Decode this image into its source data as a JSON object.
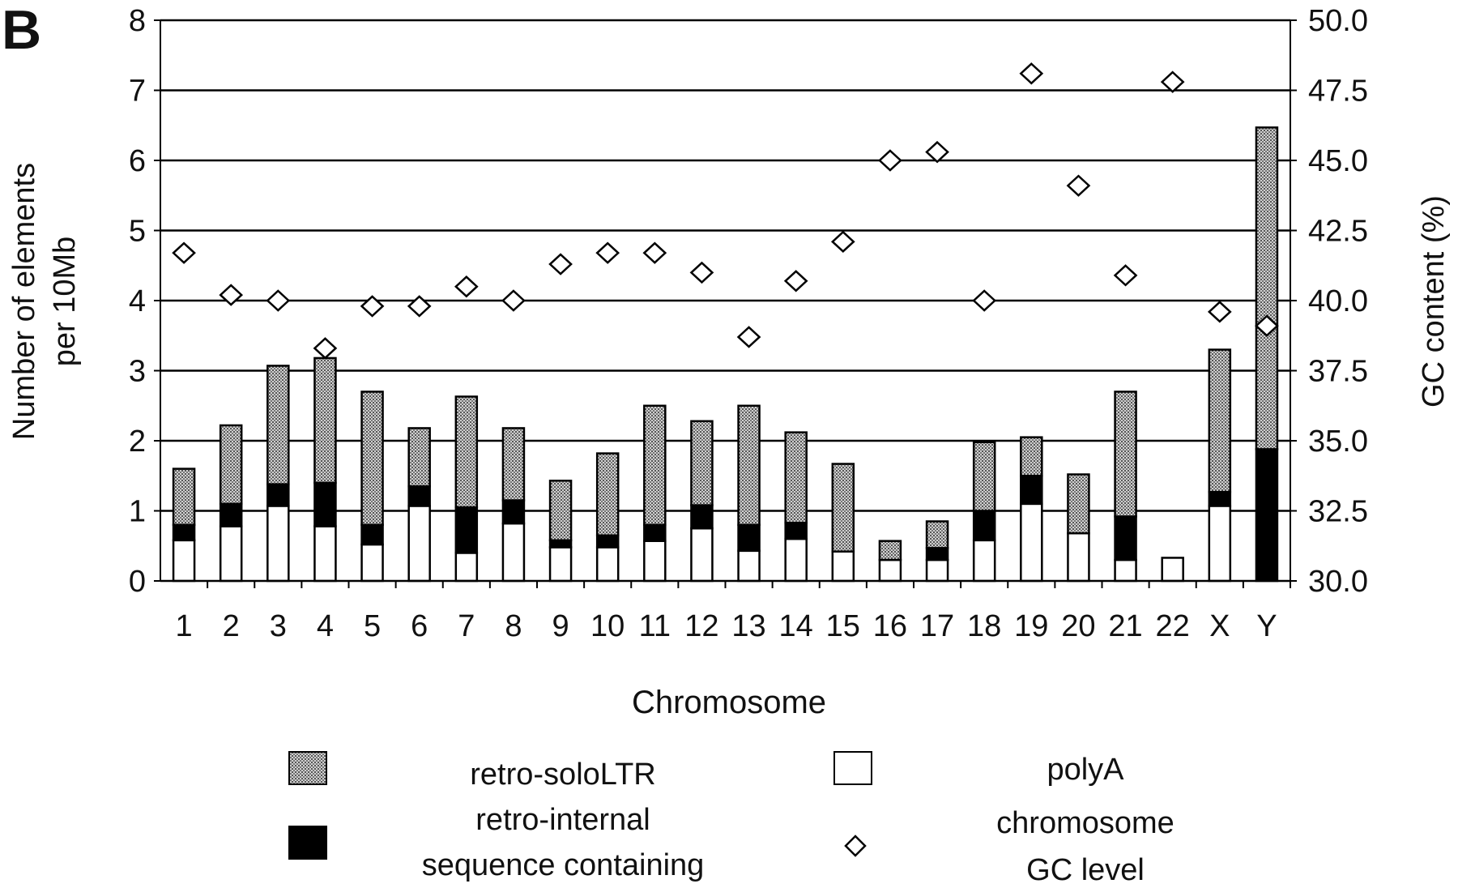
{
  "panel_label": "B",
  "chart_data": {
    "type": "bar",
    "stacked": true,
    "xlabel": "Chromosome",
    "ylabel": "Number of elements per 10Mb",
    "ylabel_lines": [
      "Number of elements",
      "per 10Mb"
    ],
    "y2label": "GC content (%)",
    "ylim": [
      0,
      8
    ],
    "y2lim": [
      30.0,
      50.0
    ],
    "yticks": [
      "0",
      "1",
      "2",
      "3",
      "4",
      "5",
      "6",
      "7",
      "8"
    ],
    "y2ticks": [
      "30.0",
      "32.5",
      "35.0",
      "37.5",
      "40.0",
      "42.5",
      "45.0",
      "47.5",
      "50.0"
    ],
    "grid": true,
    "categories": [
      "1",
      "2",
      "3",
      "4",
      "5",
      "6",
      "7",
      "8",
      "9",
      "10",
      "11",
      "12",
      "13",
      "14",
      "15",
      "16",
      "17",
      "18",
      "19",
      "20",
      "21",
      "22",
      "X",
      "Y"
    ],
    "series": [
      {
        "name": "polyA",
        "color": "#ffffff",
        "values": [
          0.58,
          0.78,
          1.07,
          0.78,
          0.52,
          1.07,
          0.4,
          0.82,
          0.48,
          0.48,
          0.57,
          0.75,
          0.43,
          0.6,
          0.42,
          0.3,
          0.3,
          0.58,
          1.1,
          0.68,
          0.3,
          0.33,
          1.07,
          0
        ]
      },
      {
        "name": "retro-internal sequence containing",
        "color": "#000000",
        "values": [
          0.22,
          0.32,
          0.31,
          0.62,
          0.28,
          0.28,
          0.65,
          0.33,
          0.1,
          0.17,
          0.23,
          0.33,
          0.37,
          0.23,
          0,
          0,
          0.17,
          0.42,
          0.4,
          0,
          0.62,
          0,
          0.2,
          1.88
        ]
      },
      {
        "name": "retro-soloLTR",
        "color": "#b8b8b8",
        "values": [
          0.8,
          1.12,
          1.69,
          1.78,
          1.9,
          0.83,
          1.58,
          1.03,
          0.85,
          1.17,
          1.7,
          1.2,
          1.7,
          1.29,
          1.25,
          0.27,
          0.38,
          0.98,
          0.55,
          0.84,
          1.78,
          0,
          2.03,
          4.59
        ]
      }
    ],
    "gc_series": {
      "name": "chromosome GC level",
      "axis": "right",
      "marker": "diamond",
      "values": [
        41.7,
        40.2,
        40.0,
        38.3,
        39.8,
        39.8,
        40.5,
        40.0,
        41.3,
        41.7,
        41.7,
        41.0,
        38.7,
        40.7,
        42.1,
        45.0,
        45.3,
        40.0,
        48.1,
        44.1,
        40.9,
        47.8,
        39.6,
        39.1
      ]
    },
    "legend": [
      {
        "key": "soloLTR",
        "label_lines": [
          "retro-soloLTR"
        ]
      },
      {
        "key": "internal",
        "label_lines": [
          "retro-internal",
          "sequence containing"
        ]
      },
      {
        "key": "polyA",
        "label_lines": [
          "polyA"
        ]
      },
      {
        "key": "gc",
        "label_lines": [
          "chromosome",
          "GC level"
        ]
      }
    ],
    "legend_placement": "bottom"
  }
}
